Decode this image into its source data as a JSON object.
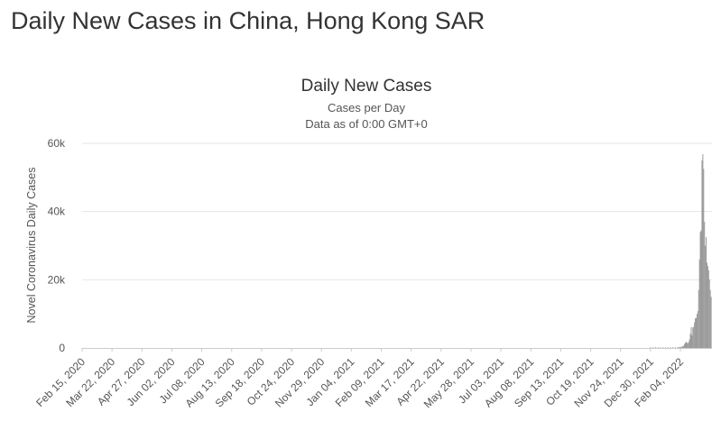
{
  "page": {
    "heading": "Daily New Cases in China, Hong Kong SAR"
  },
  "colors": {
    "bar": "#999999",
    "grid": "#e6e6e6",
    "axis_line": "#cccccc",
    "text": "#333333"
  },
  "chart_data": {
    "type": "bar",
    "title": "Daily New Cases",
    "subtitle_lines": [
      "Cases per Day",
      "Data as of 0:00 GMT+0"
    ],
    "ylabel": "Novel Coronavirus Daily Cases",
    "xlabel": "",
    "ylim": [
      0,
      60000
    ],
    "y_ticks": [
      0,
      20000,
      40000,
      60000
    ],
    "y_tick_labels": [
      "0",
      "20k",
      "40k",
      "60k"
    ],
    "grid": true,
    "x_range": [
      "2020-02-15",
      "2022-03-14"
    ],
    "x_tick_labels": [
      "Feb 15, 2020",
      "Mar 22, 2020",
      "Apr 27, 2020",
      "Jun 02, 2020",
      "Jul 08, 2020",
      "Aug 13, 2020",
      "Sep 18, 2020",
      "Oct 24, 2020",
      "Nov 29, 2020",
      "Jan 04, 2021",
      "Feb 09, 2021",
      "Mar 17, 2021",
      "Apr 22, 2021",
      "May 28, 2021",
      "Jul 03, 2021",
      "Aug 08, 2021",
      "Sep 13, 2021",
      "Oct 19, 2021",
      "Nov 24, 2021",
      "Dec 30, 2021",
      "Feb 04, 2022"
    ],
    "series": [
      {
        "values": [
          [
            "2021-12-30",
            5
          ],
          [
            "2022-01-02",
            10
          ],
          [
            "2022-01-05",
            12
          ],
          [
            "2022-01-08",
            20
          ],
          [
            "2022-01-11",
            15
          ],
          [
            "2022-01-14",
            18
          ],
          [
            "2022-01-17",
            25
          ],
          [
            "2022-01-20",
            40
          ],
          [
            "2022-01-23",
            60
          ],
          [
            "2022-01-26",
            90
          ],
          [
            "2022-01-29",
            130
          ],
          [
            "2022-02-01",
            110
          ],
          [
            "2022-02-02",
            160
          ],
          [
            "2022-02-03",
            130
          ],
          [
            "2022-02-04",
            140
          ],
          [
            "2022-02-05",
            300
          ],
          [
            "2022-02-06",
            350
          ],
          [
            "2022-02-07",
            600
          ],
          [
            "2022-02-08",
            620
          ],
          [
            "2022-02-09",
            1200
          ],
          [
            "2022-02-10",
            1500
          ],
          [
            "2022-02-11",
            1800
          ],
          [
            "2022-02-12",
            1500
          ],
          [
            "2022-02-13",
            1400
          ],
          [
            "2022-02-14",
            1800
          ],
          [
            "2022-02-15",
            2500
          ],
          [
            "2022-02-16",
            4200
          ],
          [
            "2022-02-17",
            6100
          ],
          [
            "2022-02-18",
            3700
          ],
          [
            "2022-02-19",
            6000
          ],
          [
            "2022-02-20",
            6200
          ],
          [
            "2022-02-21",
            7500
          ],
          [
            "2022-02-22",
            8700
          ],
          [
            "2022-02-23",
            8800
          ],
          [
            "2022-02-24",
            10000
          ],
          [
            "2022-02-25",
            10800
          ],
          [
            "2022-02-26",
            17000
          ],
          [
            "2022-02-27",
            26000
          ],
          [
            "2022-02-28",
            34000
          ],
          [
            "2022-03-01",
            34500
          ],
          [
            "2022-03-02",
            55000
          ],
          [
            "2022-03-03",
            56800
          ],
          [
            "2022-03-04",
            52500
          ],
          [
            "2022-03-05",
            37000
          ],
          [
            "2022-03-06",
            30000
          ],
          [
            "2022-03-07",
            32500
          ],
          [
            "2022-03-08",
            25000
          ],
          [
            "2022-03-09",
            24000
          ],
          [
            "2022-03-10",
            22800
          ],
          [
            "2022-03-11",
            20000
          ],
          [
            "2022-03-12",
            17000
          ],
          [
            "2022-03-13",
            15000
          ]
        ]
      }
    ]
  }
}
